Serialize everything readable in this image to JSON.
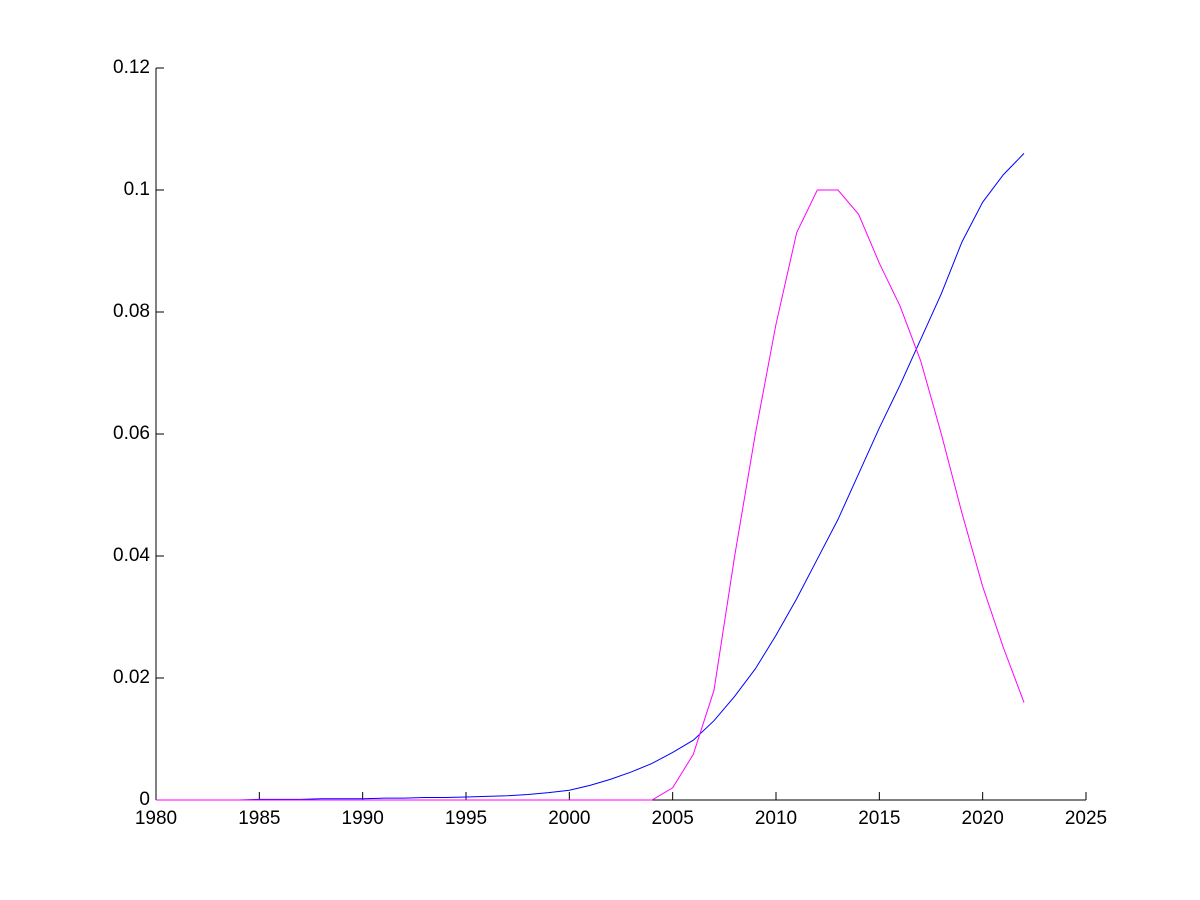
{
  "chart_data": {
    "type": "line",
    "x": [
      1980,
      1981,
      1982,
      1983,
      1984,
      1985,
      1986,
      1987,
      1988,
      1989,
      1990,
      1991,
      1992,
      1993,
      1994,
      1995,
      1996,
      1997,
      1998,
      1999,
      2000,
      2001,
      2002,
      2003,
      2004,
      2005,
      2006,
      2007,
      2008,
      2009,
      2010,
      2011,
      2012,
      2013,
      2014,
      2015,
      2016,
      2017,
      2018,
      2019,
      2020,
      2021,
      2022
    ],
    "series": [
      {
        "color": "#0000ff",
        "values": [
          0,
          0,
          0,
          0,
          0,
          0.0001,
          0.0001,
          0.0001,
          0.0002,
          0.0002,
          0.0002,
          0.0003,
          0.0003,
          0.0004,
          0.0004,
          0.0005,
          0.0006,
          0.0007,
          0.0009,
          0.0012,
          0.0016,
          0.0024,
          0.0034,
          0.0046,
          0.006,
          0.0078,
          0.0098,
          0.013,
          0.017,
          0.0215,
          0.027,
          0.033,
          0.0395,
          0.046,
          0.0535,
          0.061,
          0.068,
          0.0755,
          0.083,
          0.0915,
          0.098,
          0.1025,
          0.106
        ]
      },
      {
        "color": "#ff00ff",
        "values": [
          0,
          0,
          0,
          0,
          0,
          0,
          0,
          0,
          0,
          0,
          0,
          0,
          0,
          0,
          0,
          0,
          0,
          0,
          0,
          0,
          0,
          0,
          0,
          0,
          0,
          0.002,
          0.0075,
          0.018,
          0.04,
          0.06,
          0.078,
          0.093,
          0.1,
          0.1,
          0.096,
          0.088,
          0.081,
          0.072,
          0.06,
          0.047,
          0.035,
          0.025,
          0.016
        ]
      }
    ],
    "xlim": [
      1980,
      2025
    ],
    "xticks": [
      1980,
      1985,
      1990,
      1995,
      2000,
      2005,
      2010,
      2015,
      2020,
      2025
    ],
    "ylim": [
      0,
      0.12
    ],
    "yticks": [
      0,
      0.02,
      0.04,
      0.06,
      0.08,
      0.1,
      0.12
    ]
  }
}
